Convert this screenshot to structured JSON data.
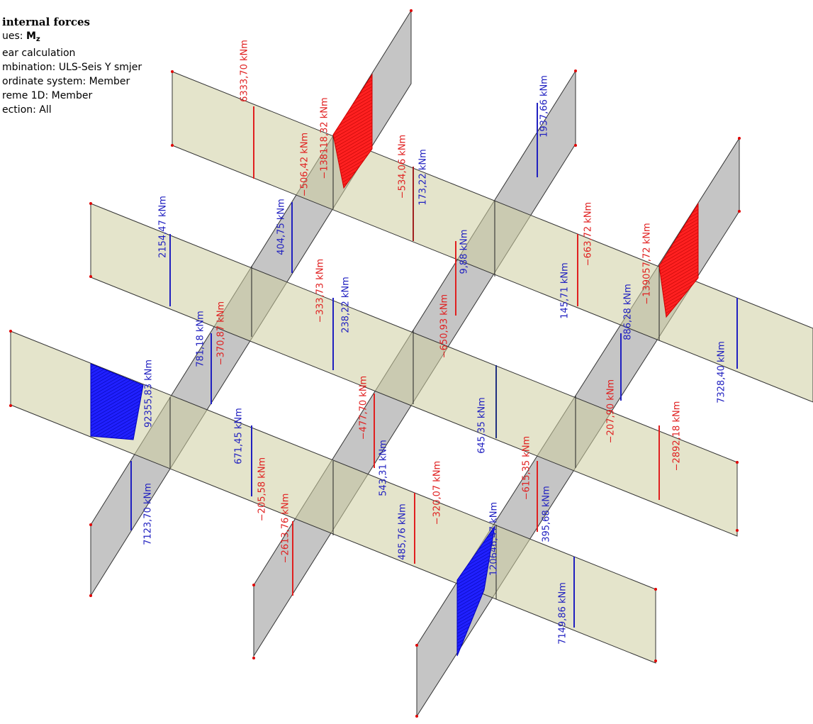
{
  "header": {
    "title": "internal forces",
    "values_line": {
      "prefix": "ues: ",
      "symbol": "M",
      "subscript": "z"
    },
    "lines": [
      "ear calculation",
      "mbination: ULS-Seis Y smjer",
      "ordinate system: Member",
      "reme 1D: Member",
      "ection: All"
    ]
  },
  "labels": [
    "6333,70 kNm",
    "−138118,32 kNm",
    "−506,42 kNm",
    "404,75 kNm",
    "−534,06 kNm",
    "173,22 kNm",
    "1937,66 kNm",
    "2154,47 kNm",
    "781,18 kNm",
    "−370,87 kNm",
    "−333,73 kNm",
    "238,22 kNm",
    "9,88 kNm",
    "−650,93 kNm",
    "−663,72 kNm",
    "−139057,72 kNm",
    "145,71 kNm",
    "886,28 kNm",
    "7328,40 kNm",
    "92355,83 kNm",
    "671,45 kNm",
    "−477,70 kNm",
    "543,31 kNm",
    "645,35 kNm",
    "−207,90 kNm",
    "−2892,18 kNm",
    "−615,35 kNm",
    "395,68 kNm",
    "−205,58 kNm",
    "−2613,76 kNm",
    "−320,07 kNm",
    "120646,47 kNm",
    "485,76 kNm",
    "7123,70 kNm",
    "7149,86 kNm"
  ]
}
